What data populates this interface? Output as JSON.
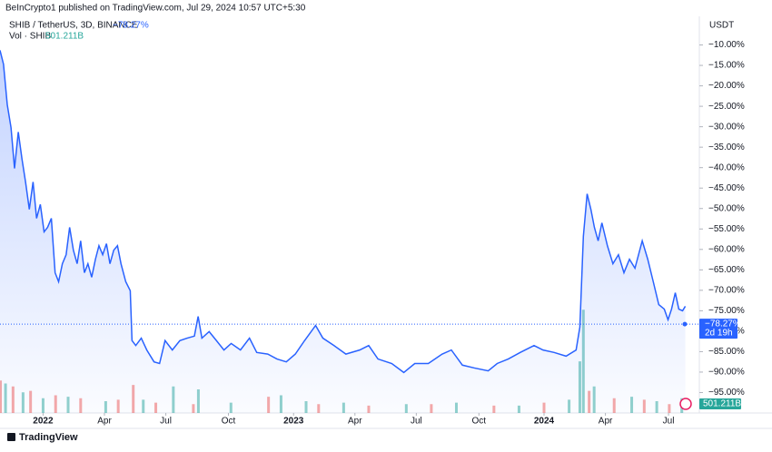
{
  "header": {
    "publisher": "BeInCrypto1 published on TradingView.com, Jul 29, 2024 10:57 UTC+5:30",
    "brand": "TradingView"
  },
  "chart_data": {
    "type": "line",
    "currency": "USDT",
    "grid": false,
    "series": [
      {
        "name": "SHIB / TetherUS, 3D, BINANCE",
        "color": "#2962ff",
        "x": [
          2021.828,
          2021.842,
          2021.857,
          2021.872,
          2021.886,
          2021.901,
          2021.916,
          2021.93,
          2021.945,
          2021.96,
          2021.974,
          2021.989,
          2022.004,
          2022.018,
          2022.033,
          2022.048,
          2022.062,
          2022.077,
          2022.092,
          2022.106,
          2022.121,
          2022.136,
          2022.15,
          2022.165,
          2022.179,
          2022.194,
          2022.209,
          2022.223,
          2022.238,
          2022.253,
          2022.267,
          2022.282,
          2022.297,
          2022.311,
          2022.33,
          2022.348,
          2022.355,
          2022.37,
          2022.392,
          2022.414,
          2022.443,
          2022.465,
          2022.487,
          2022.516,
          2022.546,
          2022.575,
          2022.604,
          2022.619,
          2022.634,
          2022.663,
          2022.692,
          2022.722,
          2022.751,
          2022.788,
          2022.824,
          2022.853,
          2022.897,
          2022.934,
          2022.971,
          2023.007,
          2023.044,
          2023.088,
          2023.117,
          2023.161,
          2023.209,
          2023.264,
          2023.3,
          2023.337,
          2023.392,
          2023.44,
          2023.484,
          2023.538,
          2023.593,
          2023.63,
          2023.674,
          2023.722,
          2023.777,
          2023.813,
          2023.857,
          2023.905,
          2023.96,
          2023.996,
          2024.04,
          2024.088,
          2024.128,
          2024.143,
          2024.157,
          2024.172,
          2024.187,
          2024.201,
          2024.216,
          2024.231,
          2024.253,
          2024.275,
          2024.297,
          2024.319,
          2024.341,
          2024.363,
          2024.392,
          2024.414,
          2024.436,
          2024.458,
          2024.48,
          2024.495,
          2024.509,
          2024.524,
          2024.538,
          2024.553,
          2024.564
        ],
        "values": [
          -11.3,
          -14.7,
          -24.6,
          -30.2,
          -40.2,
          -31.3,
          -38,
          -43.5,
          -50.2,
          -43.5,
          -52.4,
          -49,
          -55.7,
          -54.6,
          -52.4,
          -65.7,
          -67.9,
          -63.5,
          -61.3,
          -54.6,
          -60.2,
          -63.5,
          -57.9,
          -65.7,
          -63.5,
          -66.8,
          -62.4,
          -59.1,
          -61.3,
          -58.6,
          -63.5,
          -60.2,
          -59.1,
          -63.5,
          -67.9,
          -70.1,
          -82.3,
          -83.5,
          -81.7,
          -84.6,
          -87.5,
          -87.9,
          -82.3,
          -84.6,
          -82.3,
          -81.7,
          -81.2,
          -76.4,
          -81.7,
          -80.1,
          -82.3,
          -84.6,
          -83,
          -84.6,
          -81.7,
          -85.2,
          -85.6,
          -86.8,
          -87.5,
          -85.6,
          -82.3,
          -78.6,
          -81.7,
          -83.5,
          -85.6,
          -84.6,
          -83.5,
          -86.8,
          -87.9,
          -90.1,
          -87.9,
          -87.9,
          -85.6,
          -84.6,
          -88.3,
          -89,
          -89.7,
          -87.9,
          -86.8,
          -85.2,
          -83.5,
          -84.6,
          -85.2,
          -86.1,
          -84.6,
          -79,
          -56.8,
          -46.4,
          -50.2,
          -54.6,
          -57.9,
          -53.5,
          -59.1,
          -63.5,
          -61.3,
          -65.7,
          -62.4,
          -64.6,
          -57.9,
          -62.4,
          -67.9,
          -73.5,
          -74.6,
          -77.2,
          -74.6,
          -70.6,
          -74.6,
          -75,
          -73.9
        ]
      }
    ],
    "last_price": {
      "value": -78.27,
      "label": "−78.27%",
      "countdown": "2d 19h"
    },
    "xlim": [
      2021.828,
      2024.62
    ],
    "xticks": [
      {
        "value": 2022,
        "label": "2022"
      },
      {
        "value": 2022.245,
        "label": "Apr"
      },
      {
        "value": 2022.49,
        "label": "Jul"
      },
      {
        "value": 2022.74,
        "label": "Oct"
      },
      {
        "value": 2023,
        "label": "2023"
      },
      {
        "value": 2023.245,
        "label": "Apr"
      },
      {
        "value": 2023.49,
        "label": "Jul"
      },
      {
        "value": 2023.74,
        "label": "Oct"
      },
      {
        "value": 2024,
        "label": "2024"
      },
      {
        "value": 2024.245,
        "label": "Apr"
      },
      {
        "value": 2024.497,
        "label": "Jul"
      }
    ],
    "ylim": [
      -100,
      -3
    ],
    "yticks": [
      {
        "value": -10,
        "label": "−10.00%"
      },
      {
        "value": -15,
        "label": "−15.00%"
      },
      {
        "value": -20,
        "label": "−20.00%"
      },
      {
        "value": -25,
        "label": "−25.00%"
      },
      {
        "value": -30,
        "label": "−30.00%"
      },
      {
        "value": -35,
        "label": "−35.00%"
      },
      {
        "value": -40,
        "label": "−40.00%"
      },
      {
        "value": -45,
        "label": "−45.00%"
      },
      {
        "value": -50,
        "label": "−50.00%"
      },
      {
        "value": -55,
        "label": "−55.00%"
      },
      {
        "value": -60,
        "label": "−60.00%"
      },
      {
        "value": -65,
        "label": "−65.00%"
      },
      {
        "value": -70,
        "label": "−70.00%"
      },
      {
        "value": -75,
        "label": "−75.00%"
      },
      {
        "value": -80,
        "label": "−80.00%"
      },
      {
        "value": -85,
        "label": "−85.00%"
      },
      {
        "value": -90,
        "label": "−90.00%"
      },
      {
        "value": -95,
        "label": "−95.00%"
      }
    ],
    "volume": {
      "name": "Vol · SHIB",
      "vlim": [
        0,
        8000
      ],
      "last": {
        "value": 501.211,
        "label": "501.211B"
      },
      "series": [
        {
          "color": "#ef5350",
          "x": [
            2021.83,
            2021.88,
            2021.95,
            2022.05,
            2022.15,
            2022.3,
            2022.36,
            2022.45,
            2022.6,
            2022.9,
            2023.1,
            2023.3,
            2023.55,
            2023.8,
            2024.0,
            2024.18,
            2024.28,
            2024.4,
            2024.5
          ],
          "values": [
            2200,
            1800,
            1500,
            1200,
            1000,
            900,
            1900,
            700,
            600,
            1100,
            600,
            500,
            600,
            500,
            700,
            1500,
            1000,
            900,
            600
          ]
        },
        {
          "color": "#26a69a",
          "x": [
            2021.85,
            2021.92,
            2022.0,
            2022.1,
            2022.25,
            2022.4,
            2022.52,
            2022.62,
            2022.75,
            2022.95,
            2023.05,
            2023.2,
            2023.45,
            2023.65,
            2023.9,
            2024.1,
            2024.143,
            2024.157,
            2024.2,
            2024.35,
            2024.45,
            2024.55
          ],
          "values": [
            2000,
            1400,
            1000,
            1100,
            800,
            900,
            1800,
            1600,
            700,
            1200,
            800,
            700,
            600,
            700,
            500,
            900,
            3500,
            7000,
            1800,
            1100,
            800,
            1000
          ]
        }
      ]
    }
  }
}
